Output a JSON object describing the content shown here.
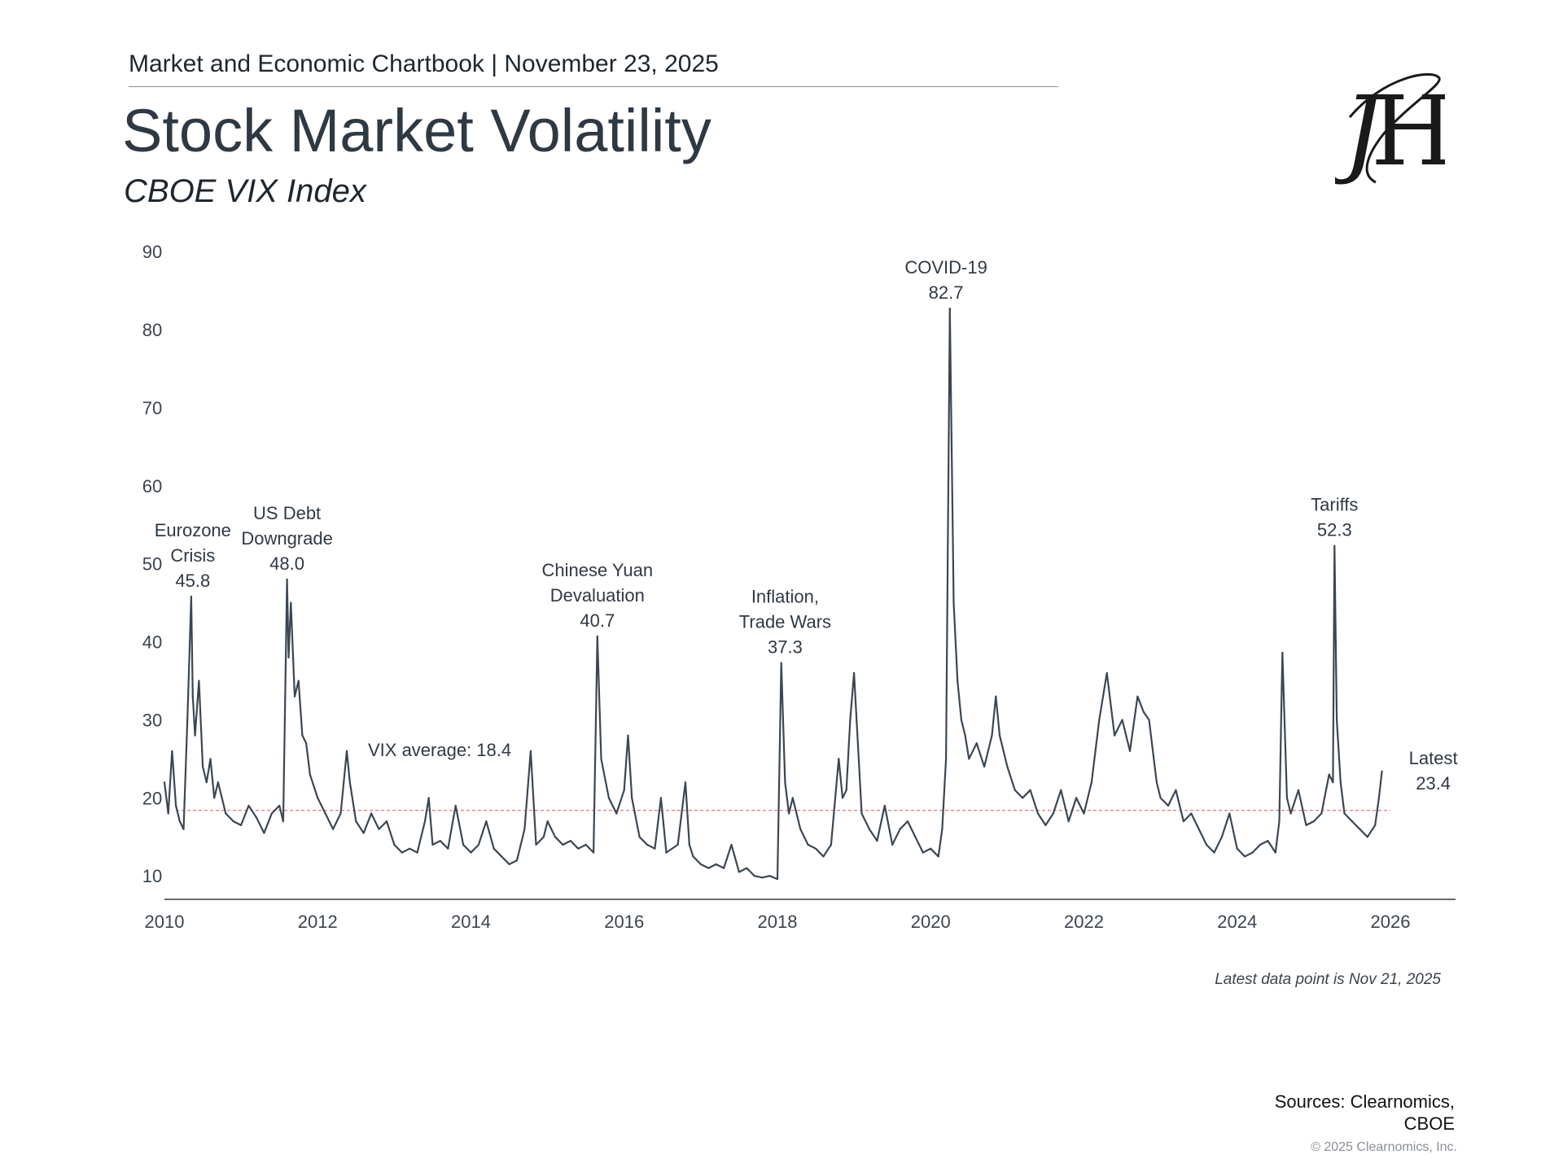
{
  "header": {
    "text": "Market and Economic Chartbook | November 23, 2025"
  },
  "title": "Stock Market Volatility",
  "subtitle": "CBOE VIX Index",
  "logo": {
    "icon": "jh-monogram-logo",
    "text": "JH"
  },
  "colors": {
    "line": "#3b4753",
    "average": "#d88a8a",
    "axis": "#333a41",
    "text": "#2f3944"
  },
  "chart_data": {
    "type": "line",
    "title": "CBOE VIX Index",
    "xlabel": "",
    "ylabel": "",
    "xlim": [
      2010,
      2026.85
    ],
    "ylim": [
      7,
      92
    ],
    "x_ticks": [
      2010,
      2012,
      2014,
      2016,
      2018,
      2020,
      2022,
      2024,
      2026
    ],
    "x_tick_labels": [
      "2010",
      "2012",
      "2014",
      "2016",
      "2018",
      "2020",
      "2022",
      "2024",
      "2026"
    ],
    "y_ticks": [
      10,
      20,
      30,
      40,
      50,
      60,
      70,
      80,
      90
    ],
    "y_tick_labels": [
      "10",
      "20",
      "30",
      "40",
      "50",
      "60",
      "70",
      "80",
      "90"
    ],
    "average": {
      "value": 18.4,
      "label": "VIX average: 18.4"
    },
    "series": [
      {
        "name": "VIX",
        "x": [
          2010.0,
          2010.05,
          2010.1,
          2010.15,
          2010.2,
          2010.25,
          2010.3,
          2010.35,
          2010.37,
          2010.4,
          2010.45,
          2010.5,
          2010.55,
          2010.6,
          2010.65,
          2010.7,
          2010.8,
          2010.9,
          2011.0,
          2011.1,
          2011.2,
          2011.3,
          2011.4,
          2011.5,
          2011.55,
          2011.6,
          2011.62,
          2011.65,
          2011.7,
          2011.75,
          2011.8,
          2011.85,
          2011.9,
          2012.0,
          2012.1,
          2012.2,
          2012.3,
          2012.38,
          2012.42,
          2012.5,
          2012.6,
          2012.7,
          2012.8,
          2012.9,
          2013.0,
          2013.1,
          2013.2,
          2013.3,
          2013.4,
          2013.45,
          2013.5,
          2013.6,
          2013.7,
          2013.8,
          2013.9,
          2014.0,
          2014.1,
          2014.2,
          2014.3,
          2014.4,
          2014.5,
          2014.6,
          2014.7,
          2014.78,
          2014.85,
          2014.95,
          2015.0,
          2015.1,
          2015.2,
          2015.3,
          2015.4,
          2015.5,
          2015.6,
          2015.65,
          2015.7,
          2015.8,
          2015.9,
          2016.0,
          2016.05,
          2016.1,
          2016.2,
          2016.3,
          2016.4,
          2016.48,
          2016.55,
          2016.7,
          2016.8,
          2016.85,
          2016.9,
          2017.0,
          2017.1,
          2017.2,
          2017.3,
          2017.4,
          2017.5,
          2017.6,
          2017.7,
          2017.8,
          2017.9,
          2018.0,
          2018.05,
          2018.1,
          2018.15,
          2018.2,
          2018.3,
          2018.4,
          2018.5,
          2018.6,
          2018.7,
          2018.8,
          2018.85,
          2018.9,
          2018.95,
          2019.0,
          2019.1,
          2019.2,
          2019.3,
          2019.4,
          2019.5,
          2019.6,
          2019.7,
          2019.8,
          2019.9,
          2020.0,
          2020.1,
          2020.15,
          2020.2,
          2020.25,
          2020.3,
          2020.35,
          2020.4,
          2020.45,
          2020.5,
          2020.6,
          2020.7,
          2020.8,
          2020.85,
          2020.9,
          2021.0,
          2021.1,
          2021.2,
          2021.3,
          2021.4,
          2021.5,
          2021.6,
          2021.7,
          2021.8,
          2021.9,
          2022.0,
          2022.1,
          2022.2,
          2022.3,
          2022.4,
          2022.5,
          2022.6,
          2022.7,
          2022.78,
          2022.85,
          2022.95,
          2023.0,
          2023.1,
          2023.2,
          2023.3,
          2023.4,
          2023.5,
          2023.6,
          2023.7,
          2023.8,
          2023.9,
          2024.0,
          2024.1,
          2024.2,
          2024.3,
          2024.4,
          2024.5,
          2024.55,
          2024.59,
          2024.65,
          2024.7,
          2024.8,
          2024.9,
          2025.0,
          2025.1,
          2025.2,
          2025.25,
          2025.27,
          2025.3,
          2025.35,
          2025.4,
          2025.5,
          2025.6,
          2025.7,
          2025.8,
          2025.85,
          2025.89
        ],
        "y": [
          22,
          18,
          26,
          19,
          17,
          16,
          30,
          45.8,
          33,
          28,
          35,
          24,
          22,
          25,
          20,
          22,
          18,
          17,
          16.5,
          19,
          17.5,
          15.5,
          18,
          19,
          17,
          48,
          38,
          45,
          33,
          35,
          28,
          27,
          23,
          20,
          18,
          16,
          18,
          26,
          22,
          17,
          15.5,
          18,
          16,
          17,
          14,
          13,
          13.5,
          13,
          17,
          20,
          14,
          14.5,
          13.5,
          19,
          14,
          13,
          14,
          17,
          13.5,
          12.5,
          11.5,
          12,
          16,
          26,
          14,
          15,
          17,
          15,
          14,
          14.5,
          13.5,
          14,
          13,
          40.7,
          25,
          20,
          18,
          21,
          28,
          20,
          15,
          14,
          13.5,
          20,
          13,
          14,
          22,
          14,
          12.5,
          11.5,
          11,
          11.5,
          11,
          14,
          10.5,
          11,
          10,
          9.8,
          10,
          9.6,
          37.3,
          22,
          18,
          20,
          16,
          14,
          13.5,
          12.5,
          14,
          25,
          20,
          21,
          30,
          36,
          18,
          16,
          14.5,
          19,
          14,
          16,
          17,
          15,
          13,
          13.5,
          12.5,
          16,
          25,
          82.7,
          45,
          35,
          30,
          28,
          25,
          27,
          24,
          28,
          33,
          28,
          24,
          21,
          20,
          21,
          18,
          16.5,
          18,
          21,
          17,
          20,
          18,
          22,
          30,
          36,
          28,
          30,
          26,
          33,
          31,
          30,
          22,
          20,
          19,
          21,
          17,
          18,
          16,
          14,
          13,
          15,
          18,
          13.5,
          12.5,
          13,
          14,
          14.5,
          13,
          17,
          38.6,
          20,
          18,
          21,
          16.5,
          17,
          18,
          23,
          22,
          52.3,
          30,
          22,
          18,
          17,
          16,
          15,
          16.5,
          20,
          23.4
        ]
      }
    ],
    "annotations": [
      {
        "x": 2010.37,
        "y": 45.8,
        "lines": [
          "Eurozone",
          "Crisis",
          "45.8"
        ]
      },
      {
        "x": 2011.6,
        "y": 48.0,
        "lines": [
          "US Debt",
          "Downgrade",
          "48.0"
        ]
      },
      {
        "x": 2015.65,
        "y": 40.7,
        "lines": [
          "Chinese Yuan",
          "Devaluation",
          "40.7"
        ]
      },
      {
        "x": 2018.1,
        "y": 37.3,
        "lines": [
          "Inflation,",
          "Trade Wars",
          "37.3"
        ]
      },
      {
        "x": 2020.2,
        "y": 82.7,
        "lines": [
          "COVID-19",
          "82.7"
        ]
      },
      {
        "x": 2025.27,
        "y": 52.3,
        "lines": [
          "Tariffs",
          "52.3"
        ]
      },
      {
        "x": 2025.89,
        "y": 23.4,
        "lines": [
          "Latest",
          "23.4"
        ]
      }
    ]
  },
  "footer": {
    "note": "Latest data point is Nov 21, 2025",
    "sources_line1": "Sources: Clearnomics,",
    "sources_line2": "CBOE",
    "copyright": "© 2025 Clearnomics, Inc."
  }
}
